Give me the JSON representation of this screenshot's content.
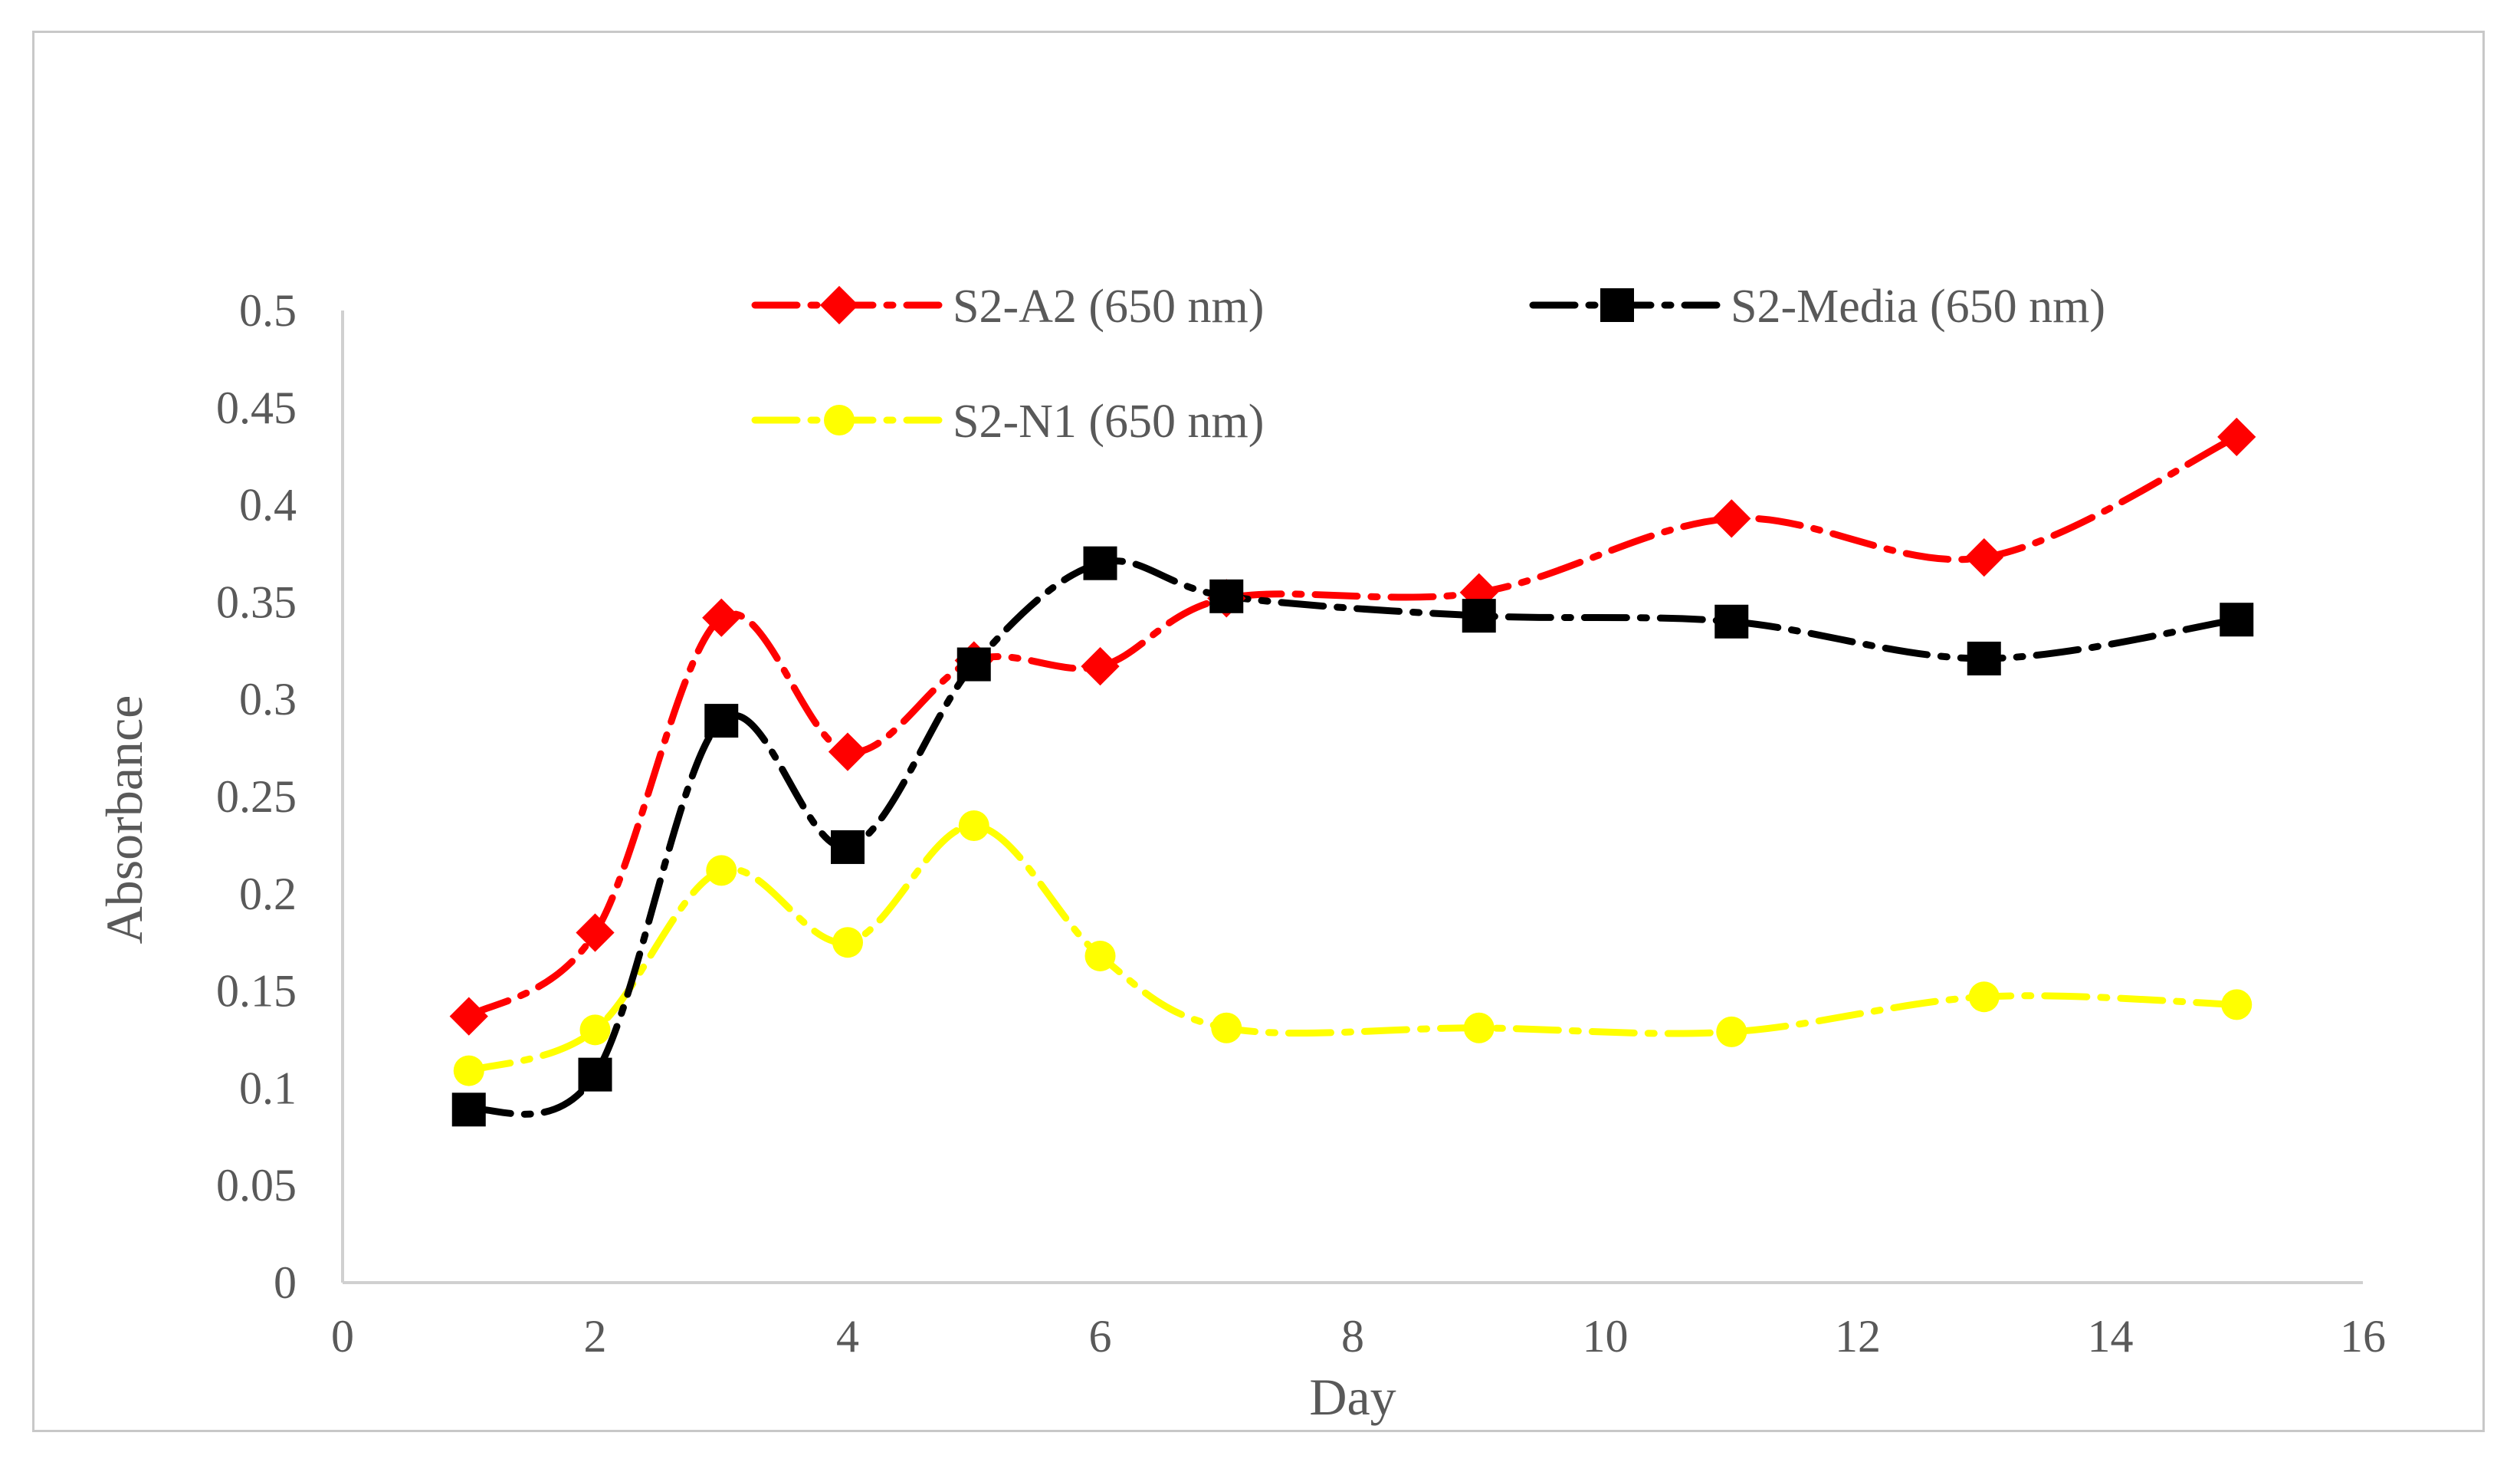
{
  "chart_data": {
    "type": "line",
    "title": "",
    "xlabel": "Day",
    "ylabel": "Absorbance",
    "xlim": [
      0,
      16
    ],
    "ylim": [
      0,
      0.5
    ],
    "xticks": [
      0,
      2,
      4,
      6,
      8,
      10,
      12,
      14,
      16
    ],
    "yticks": [
      0,
      0.05,
      0.1,
      0.15,
      0.2,
      0.25,
      0.3,
      0.35,
      0.4,
      0.45,
      0.5
    ],
    "xtick_labels": [
      "0",
      "2",
      "4",
      "6",
      "8",
      "10",
      "12",
      "14",
      "16"
    ],
    "ytick_labels": [
      "0",
      "0.05",
      "0.1",
      "0.15",
      "0.2",
      "0.25",
      "0.3",
      "0.35",
      "0.4",
      "0.45",
      "0.5"
    ],
    "grid": false,
    "legend_position": "top",
    "series": [
      {
        "name": "S2-A2 (650 nm)",
        "color": "#ff0000",
        "marker": "diamond",
        "x": [
          1,
          2,
          3,
          4,
          5,
          6,
          7,
          9,
          11,
          13,
          15
        ],
        "values": [
          0.137,
          0.18,
          0.342,
          0.273,
          0.32,
          0.317,
          0.352,
          0.355,
          0.393,
          0.373,
          0.435
        ]
      },
      {
        "name": "S2-Media (650 nm)",
        "color": "#000000",
        "marker": "square",
        "x": [
          1,
          2,
          3,
          4,
          5,
          6,
          7,
          9,
          11,
          13,
          15
        ],
        "values": [
          0.089,
          0.107,
          0.289,
          0.224,
          0.318,
          0.37,
          0.353,
          0.343,
          0.34,
          0.321,
          0.341
        ]
      },
      {
        "name": "S2-N1 (650 nm)",
        "color": "#ffff00",
        "marker": "circle",
        "x": [
          1,
          2,
          3,
          4,
          5,
          6,
          7,
          9,
          11,
          13,
          15
        ],
        "values": [
          0.109,
          0.13,
          0.212,
          0.175,
          0.235,
          0.168,
          0.131,
          0.131,
          0.129,
          0.147,
          0.143
        ]
      }
    ]
  }
}
